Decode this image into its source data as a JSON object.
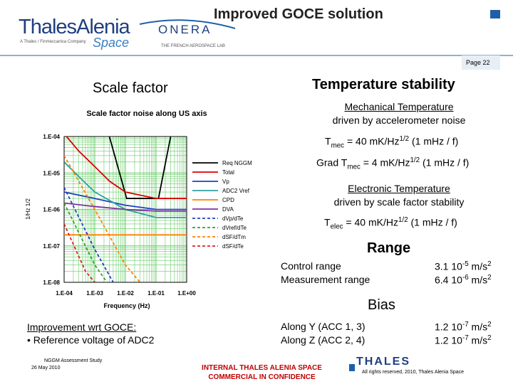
{
  "header": {
    "title": "Improved GOCE solution",
    "logo_main": "ThalesAlenia",
    "logo_tagline": "A Thales / Finmeccanica Company",
    "logo_space": "Space",
    "onera": "ONERA",
    "onera_tagline": "THE FRENCH AEROSPACE LAB",
    "page": "Page 22"
  },
  "left": {
    "heading": "Scale factor",
    "note_title": "Improvement wrt GOCE:",
    "note_item": "• Reference voltage of ADC2"
  },
  "right": {
    "heading": "Temperature stability",
    "mech": {
      "title": "Mechanical Temperature",
      "subtitle": "driven by accelerometer noise"
    },
    "tmec": {
      "pre": "T",
      "sub": "mec",
      "mid": " = 40 mK/Hz",
      "sup": "1/2",
      "post": " (1 mHz / f)"
    },
    "grad": {
      "pre": "Grad T",
      "sub": "mec",
      "mid": " = 4 mK/Hz",
      "sup": "1/2",
      "post": " (1 mHz / f)"
    },
    "elec": {
      "title": "Electronic Temperature",
      "subtitle": "driven by scale factor stability"
    },
    "telec": {
      "pre": "T",
      "sub": "elec",
      "mid": " = 40 mK/Hz",
      "sup": "1/2",
      "post": " (1 mHz / f)"
    },
    "range": {
      "heading": "Range",
      "rows": [
        {
          "label": "Control range",
          "mant": "3.1 10",
          "exp": "-5",
          "unit": " m/s",
          "uexp": "2"
        },
        {
          "label": "Measurement range",
          "mant": "6.4 10",
          "exp": "-6",
          "unit": " m/s",
          "uexp": "2"
        }
      ]
    },
    "bias": {
      "heading": "Bias",
      "rows": [
        {
          "label": "Along Y (ACC 1, 3)",
          "mant": "1.2 10",
          "exp": "-7",
          "unit": " m/s",
          "uexp": "2"
        },
        {
          "label": "Along Z (ACC 2, 4)",
          "mant": "1.2 10",
          "exp": "-7",
          "unit": " m/s",
          "uexp": "2"
        }
      ]
    }
  },
  "footer": {
    "study": "NGGM Assessment Study",
    "date": "26 May 2010",
    "conf1": "INTERNAL THALES ALENIA SPACE",
    "conf2": "COMMERCIAL IN CONFIDENCE",
    "thales": "THALES",
    "rights": "All rights reserved, 2010, Thales Alenia Space"
  },
  "chart_data": {
    "type": "line",
    "title": "Scale factor noise along US axis",
    "x_label": "Frequency (Hz)",
    "y_label": "1/Hz 1/2",
    "log_x": true,
    "log_y": true,
    "grid": true,
    "grid_color": "#66cc66",
    "xlim": [
      0.0001,
      1
    ],
    "ylim": [
      1e-08,
      0.0001
    ],
    "xticks": [
      {
        "value": 0.0001,
        "label": "1.E-04"
      },
      {
        "value": 0.001,
        "label": "1.E-03"
      },
      {
        "value": 0.01,
        "label": "1.E-02"
      },
      {
        "value": 0.1,
        "label": "1.E-01"
      },
      {
        "value": 1,
        "label": "1.E+00"
      }
    ],
    "yticks": [
      {
        "value": 1e-08,
        "label": "1.E-08"
      },
      {
        "value": 1e-07,
        "label": "1.E-07"
      },
      {
        "value": 1e-06,
        "label": "1.E-06"
      },
      {
        "value": 1e-05,
        "label": "1.E-05"
      },
      {
        "value": 0.0001,
        "label": "1.E-04"
      }
    ],
    "series": [
      {
        "name": "Req NGGM",
        "color": "#000000",
        "dash": false,
        "x": [
          0.003,
          0.011,
          0.12,
          0.3
        ],
        "values": [
          0.0001,
          2e-06,
          2e-06,
          0.0001
        ]
      },
      {
        "name": "Total",
        "color": "#dd0000",
        "dash": false,
        "x": [
          0.00012,
          0.0003,
          0.001,
          0.003,
          0.01,
          0.1,
          1
        ],
        "values": [
          0.0001,
          4e-05,
          1.5e-05,
          6e-06,
          3e-06,
          2e-06,
          2e-06
        ]
      },
      {
        "name": "Vp",
        "color": "#2040c0",
        "dash": false,
        "x": [
          0.0001,
          0.001,
          0.01,
          0.1,
          1
        ],
        "values": [
          3e-06,
          2e-06,
          1.3e-06,
          1e-06,
          1e-06
        ]
      },
      {
        "name": "ADC2 Vref",
        "color": "#30a0a0",
        "dash": false,
        "x": [
          0.0001,
          0.0003,
          0.001,
          0.01,
          0.1,
          1
        ],
        "values": [
          2e-05,
          8e-06,
          3e-06,
          1e-06,
          6e-07,
          6e-07
        ]
      },
      {
        "name": "CPD",
        "color": "#ff8000",
        "dash": false,
        "x": [
          0.0001,
          1
        ],
        "values": [
          2e-07,
          2e-07
        ]
      },
      {
        "name": "DVA",
        "color": "#8030a0",
        "dash": false,
        "x": [
          0.0001,
          0.001,
          0.01,
          0.1,
          1
        ],
        "values": [
          1.5e-06,
          1.2e-06,
          1e-06,
          9e-07,
          9e-07
        ]
      },
      {
        "name": "dVp/dTe",
        "color": "#2040c0",
        "dash": true,
        "x": [
          0.0001,
          0.001,
          0.004
        ],
        "values": [
          4e-06,
          8e-08,
          1e-08
        ]
      },
      {
        "name": "dVref/dTe",
        "color": "#30a030",
        "dash": true,
        "x": [
          0.0001,
          0.001,
          0.0025
        ],
        "values": [
          1.5e-06,
          3e-08,
          1e-08
        ]
      },
      {
        "name": "dSF/dTm",
        "color": "#ff8000",
        "dash": true,
        "x": [
          0.0001,
          0.001,
          0.01,
          0.03
        ],
        "values": [
          3e-05,
          1e-06,
          3e-08,
          1e-08
        ]
      },
      {
        "name": "dSF/dTe",
        "color": "#dd2020",
        "dash": true,
        "x": [
          0.0001,
          0.0005,
          0.001
        ],
        "values": [
          4e-07,
          2e-08,
          1e-08
        ]
      }
    ]
  }
}
